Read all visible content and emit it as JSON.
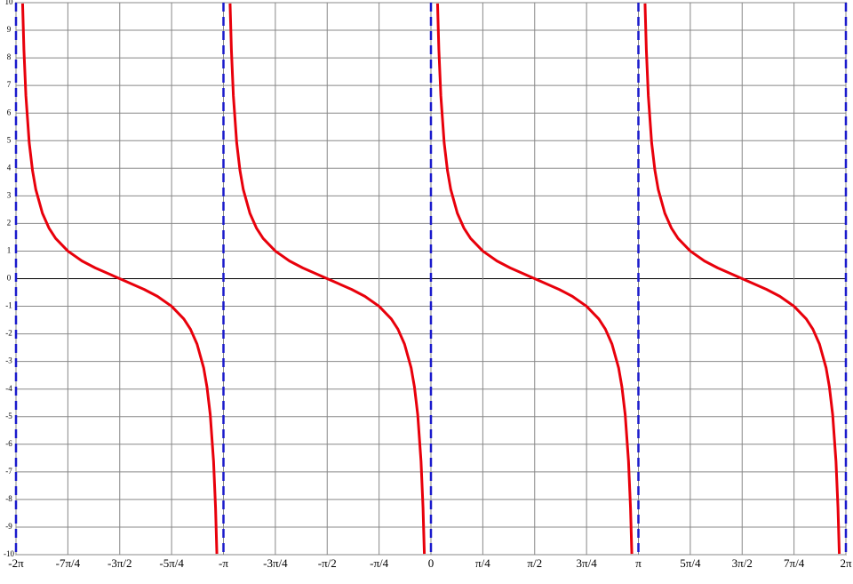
{
  "chart_data": {
    "type": "line",
    "xlim": [
      -6.2832,
      6.2832
    ],
    "ylim": [
      -10,
      10
    ],
    "xticks": [
      {
        "value": -6.2832,
        "label": "-2π"
      },
      {
        "value": -5.4978,
        "label": "-7π/4"
      },
      {
        "value": -4.7124,
        "label": "-3π/2"
      },
      {
        "value": -3.927,
        "label": "-5π/4"
      },
      {
        "value": -3.1416,
        "label": "-π"
      },
      {
        "value": -2.3562,
        "label": "-3π/4"
      },
      {
        "value": -1.5708,
        "label": "-π/2"
      },
      {
        "value": -0.7854,
        "label": "-π/4"
      },
      0,
      {
        "value": 0.7854,
        "label": "π/4"
      },
      {
        "value": 1.5708,
        "label": "π/2"
      },
      {
        "value": 2.3562,
        "label": "3π/4"
      },
      {
        "value": 3.1416,
        "label": "π"
      },
      {
        "value": 3.927,
        "label": "5π/4"
      },
      {
        "value": 4.7124,
        "label": "3π/2"
      },
      {
        "value": 5.4978,
        "label": "7π/4"
      },
      {
        "value": 6.2832,
        "label": "2π"
      }
    ],
    "yticks": [
      -10,
      -9,
      -8,
      -7,
      -6,
      -5,
      -4,
      -3,
      -2,
      -1,
      0,
      1,
      2,
      3,
      4,
      5,
      6,
      7,
      8,
      9,
      10
    ],
    "grid": true,
    "asymptotes": {
      "color": "#1a1acc",
      "x": [
        -6.2832,
        -3.1416,
        0,
        3.1416,
        6.2832
      ]
    },
    "x": [
      -6.1832,
      -6.1632,
      -6.1332,
      -6.0832,
      -6.0332,
      -5.9832,
      -5.8832,
      -5.7832,
      -5.6832,
      -5.4978,
      -5.2832,
      -5.0832,
      -4.7124,
      -4.3416,
      -4.1416,
      -3.927,
      -3.7416,
      -3.6416,
      -3.5416,
      -3.4416,
      -3.3916,
      -3.3416,
      -3.2916,
      -3.2616,
      -3.2416,
      -3.1416,
      -3.0416,
      -3.0216,
      -2.9916,
      -2.9416,
      -2.8916,
      -2.8416,
      -2.7416,
      -2.6416,
      -2.5416,
      -2.3562,
      -2.1416,
      -1.9416,
      -1.5708,
      -1.2,
      -1.0,
      -0.7854,
      -0.6,
      -0.5,
      -0.4,
      -0.3,
      -0.25,
      -0.2,
      -0.15,
      -0.12,
      -0.1,
      0,
      0.1,
      0.12,
      0.15,
      0.2,
      0.25,
      0.3,
      0.4,
      0.5,
      0.6,
      0.7854,
      1.0,
      1.2,
      1.5708,
      1.9416,
      2.1416,
      2.3562,
      2.5416,
      2.6416,
      2.7416,
      2.8416,
      2.8916,
      2.9416,
      2.9916,
      3.0216,
      3.0416,
      3.1416,
      3.2416,
      3.2616,
      3.2916,
      3.3416,
      3.3916,
      3.4416,
      3.5416,
      3.6416,
      3.7416,
      3.927,
      4.1416,
      4.3416,
      4.7124,
      5.0832,
      5.2832,
      5.4978,
      5.6832,
      5.7832,
      5.8832,
      5.9832,
      6.0332,
      6.0832,
      6.1332,
      6.1632,
      6.1832
    ],
    "series": [
      {
        "color": "#e8000b",
        "values": [
          9.97,
          8.29,
          6.62,
          4.93,
          3.92,
          3.23,
          2.37,
          1.83,
          1.46,
          1,
          0.64,
          0.39,
          0,
          -0.39,
          -0.64,
          -1,
          -1.46,
          -1.83,
          -2.37,
          -3.23,
          -3.92,
          -4.93,
          -6.62,
          -8.29,
          -9.97,
          null,
          9.97,
          8.29,
          6.62,
          4.93,
          3.92,
          3.23,
          2.37,
          1.83,
          1.46,
          1,
          0.64,
          0.39,
          0,
          -0.39,
          -0.64,
          -1,
          -1.46,
          -1.83,
          -2.37,
          -3.23,
          -3.92,
          -4.93,
          -6.62,
          -8.29,
          -9.97,
          null,
          9.97,
          8.29,
          6.62,
          4.93,
          3.92,
          3.23,
          2.37,
          1.83,
          1.46,
          1,
          0.64,
          0.39,
          0,
          -0.39,
          -0.64,
          -1,
          -1.46,
          -1.83,
          -2.37,
          -3.23,
          -3.92,
          -4.93,
          -6.62,
          -8.29,
          -9.97,
          null,
          9.97,
          8.29,
          6.62,
          4.93,
          3.92,
          3.23,
          2.37,
          1.83,
          1.46,
          1,
          0.64,
          0.39,
          0,
          -0.39,
          -0.64,
          -1,
          -1.46,
          -1.83,
          -2.37,
          -3.23,
          -3.92,
          -4.93,
          -6.62,
          -8.29,
          -9.97
        ]
      }
    ]
  }
}
